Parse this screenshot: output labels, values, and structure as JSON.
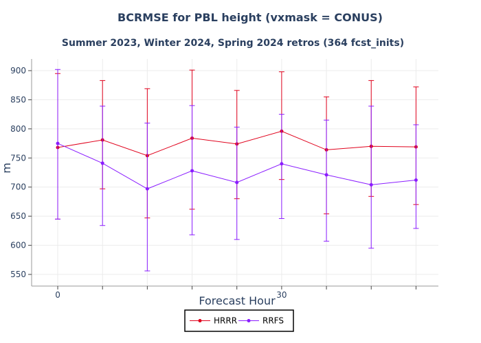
{
  "chart_data": {
    "type": "line",
    "title": "BCRMSE for PBL height (vxmask = CONUS)",
    "subtitle": "Summer 2023, Winter 2024, Spring 2024 retros (364 fcst_inits)",
    "xlabel": "Forecast Hour",
    "ylabel": "m",
    "x": [
      0,
      6,
      12,
      18,
      24,
      30,
      36,
      42,
      48
    ],
    "xticks": [
      0,
      30
    ],
    "xlim": [
      -3.5,
      51
    ],
    "yticks": [
      550,
      600,
      650,
      700,
      750,
      800,
      850,
      900
    ],
    "ylim": [
      530,
      920
    ],
    "grid": true,
    "legend_position": "bottom-center",
    "series": [
      {
        "name": "HRRR",
        "color": "#e0001b",
        "values": [
          768,
          781,
          754,
          784,
          774,
          796,
          764,
          770,
          769
        ],
        "error_low": [
          645,
          697,
          647,
          662,
          680,
          713,
          654,
          684,
          670
        ],
        "error_high": [
          895,
          883,
          869,
          901,
          866,
          898,
          855,
          883,
          872
        ]
      },
      {
        "name": "RRFS",
        "color": "#8a1cff",
        "values": [
          775,
          741,
          697,
          728,
          708,
          740,
          721,
          704,
          712
        ],
        "error_low": [
          645,
          634,
          556,
          618,
          610,
          646,
          607,
          595,
          629
        ],
        "error_high": [
          902,
          839,
          810,
          840,
          803,
          825,
          815,
          839,
          807
        ]
      }
    ]
  }
}
